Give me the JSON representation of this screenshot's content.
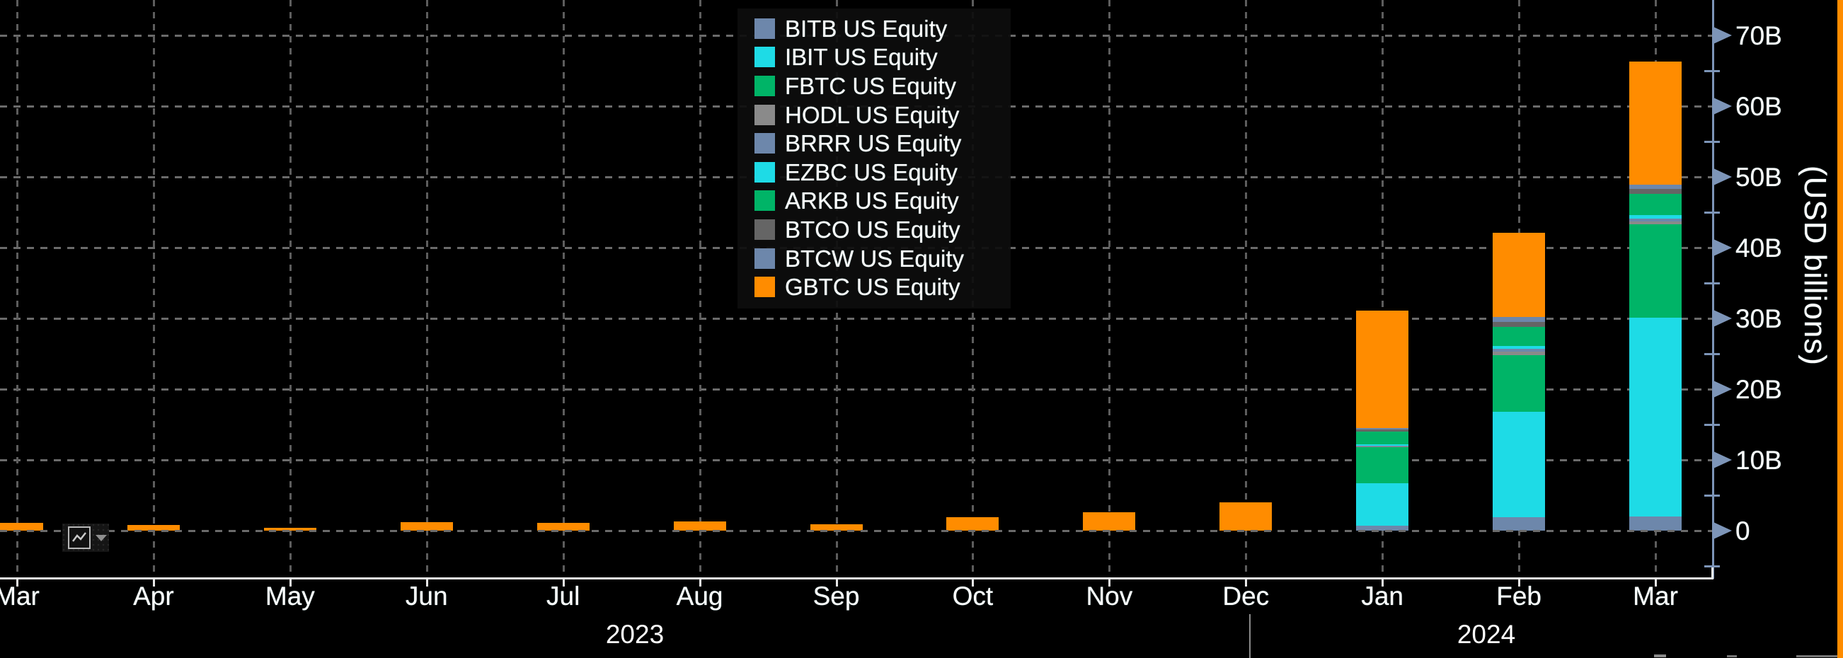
{
  "chart_data": {
    "type": "bar",
    "stacked": true,
    "title": "",
    "ylabel": "(USD billions)",
    "xlabel": "",
    "unit": "USD billions",
    "grid": true,
    "legend_position": "top-center",
    "ylim": [
      0,
      75
    ],
    "yticks": [
      "0",
      "10B",
      "20B",
      "30B",
      "40B",
      "50B",
      "60B",
      "70B"
    ],
    "categories": [
      "Mar",
      "Apr",
      "May",
      "Jun",
      "Jul",
      "Aug",
      "Sep",
      "Oct",
      "Nov",
      "Dec",
      "Jan",
      "Feb",
      "Mar"
    ],
    "year_labels": [
      "2023",
      "2024"
    ],
    "series": [
      {
        "name": "BITB US Equity",
        "color": "#6d87ab",
        "textured": false,
        "values": [
          0,
          0,
          0,
          0,
          0,
          0,
          0,
          0,
          0,
          0,
          0.7,
          1.9,
          2.0
        ]
      },
      {
        "name": "IBIT US Equity",
        "color": "#1edbe6",
        "textured": false,
        "values": [
          0,
          0,
          0,
          0,
          0,
          0,
          0,
          0,
          0,
          0,
          6.0,
          14.9,
          28.1
        ]
      },
      {
        "name": "FBTC US Equity",
        "color": "#00b467",
        "textured": false,
        "values": [
          0,
          0,
          0,
          0,
          0,
          0,
          0,
          0,
          0,
          0,
          5.2,
          8.0,
          13.2
        ]
      },
      {
        "name": "HODL US Equity",
        "color": "#8a8a8a",
        "textured": true,
        "values": [
          0,
          0,
          0,
          0,
          0,
          0,
          0,
          0,
          0,
          0,
          0.05,
          0.5,
          0.45
        ]
      },
      {
        "name": "BRRR US Equity",
        "color": "#6d87ab",
        "textured": false,
        "values": [
          0,
          0,
          0,
          0,
          0,
          0,
          0,
          0,
          0,
          0,
          0.05,
          0.45,
          0.4
        ]
      },
      {
        "name": "EZBC US Equity",
        "color": "#1edbe6",
        "textured": false,
        "values": [
          0,
          0,
          0,
          0,
          0,
          0,
          0,
          0,
          0,
          0,
          0.2,
          0.4,
          0.5
        ]
      },
      {
        "name": "ARKB US Equity",
        "color": "#00b467",
        "textured": false,
        "values": [
          0,
          0,
          0,
          0,
          0,
          0,
          0,
          0,
          0,
          0,
          1.8,
          2.7,
          3.0
        ]
      },
      {
        "name": "BTCO US Equity",
        "color": "#656565",
        "textured": true,
        "values": [
          0,
          0,
          0,
          0,
          0,
          0,
          0,
          0,
          0,
          0,
          0.3,
          0.65,
          0.7
        ]
      },
      {
        "name": "BTCW US Equity",
        "color": "#6d87ab",
        "textured": false,
        "values": [
          0,
          0,
          0,
          0,
          0,
          0,
          0,
          0,
          0,
          0,
          0.2,
          0.75,
          0.55
        ]
      },
      {
        "name": "GBTC US Equity",
        "color": "#ff8c00",
        "textured": false,
        "values": [
          1.1,
          0.85,
          0.45,
          1.2,
          1.15,
          1.3,
          0.95,
          1.9,
          2.6,
          4.0,
          16.6,
          11.85,
          17.4
        ]
      }
    ],
    "totals": [
      1.1,
      0.85,
      0.45,
      1.2,
      1.15,
      1.3,
      0.95,
      1.9,
      2.6,
      4.0,
      31.1,
      42.1,
      66.3
    ]
  },
  "colors": {
    "background": "#000000",
    "axis": "#7d95b8",
    "gridline": "#6b6b6b",
    "text": "#ffffff",
    "terminal_edge": "#ff8c00"
  },
  "toolbar": {
    "annotation_button": "line-chart annotation tool",
    "dropdown": "open annotation options"
  }
}
